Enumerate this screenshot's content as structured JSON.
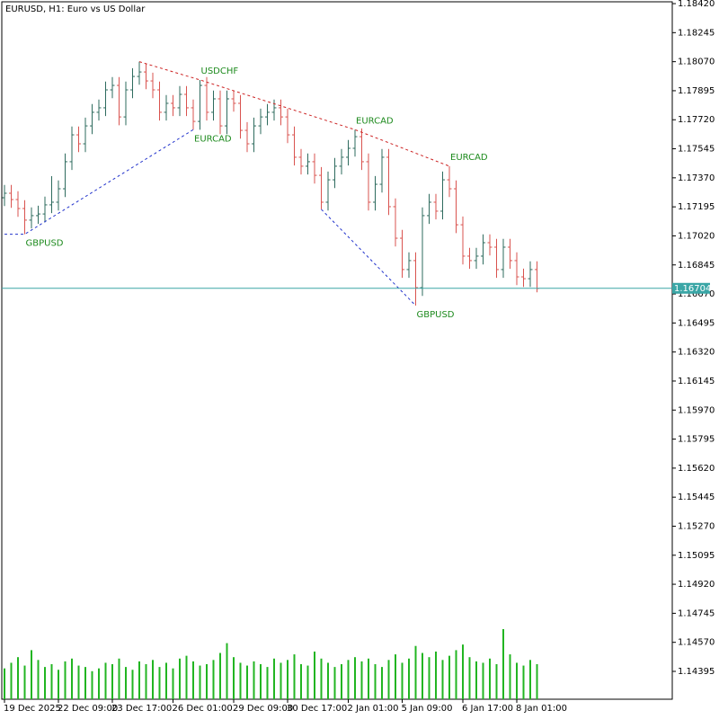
{
  "chart_data": {
    "type": "ohlc",
    "title": "EURUSD, H1:  Euro vs US Dollar",
    "categories": [
      "19 Dec 2025",
      null,
      null,
      null,
      null,
      null,
      null,
      null,
      "22 Dec 09:00",
      null,
      null,
      null,
      null,
      null,
      null,
      null,
      "23 Dec 17:00",
      null,
      null,
      null,
      null,
      null,
      null,
      null,
      null,
      "26 Dec 01:00",
      null,
      null,
      null,
      null,
      null,
      null,
      null,
      null,
      "29 Dec 09:00",
      null,
      null,
      null,
      null,
      null,
      null,
      null,
      "30 Dec 17:00",
      null,
      null,
      null,
      null,
      null,
      null,
      null,
      null,
      "2 Jan 01:00",
      null,
      null,
      null,
      null,
      null,
      null,
      null,
      "5 Jan 09:00",
      null,
      null,
      null,
      null,
      null,
      null,
      null,
      null,
      "6 Jan 17:00",
      null,
      null,
      null,
      null,
      null,
      null,
      null,
      "8 Jan 01:00",
      null,
      null,
      null
    ],
    "open": [
      1.1725,
      1.17277,
      1.17239,
      1.17185,
      1.17115,
      1.17142,
      1.17152,
      1.17207,
      1.17223,
      1.17304,
      1.17467,
      1.17629,
      1.17575,
      1.17683,
      1.17765,
      1.17792,
      1.179,
      1.17927,
      1.17737,
      1.179,
      1.17981,
      1.18008,
      1.17954,
      1.179,
      1.17765,
      1.17819,
      1.17792,
      1.17873,
      1.17792,
      1.1771,
      1.17927,
      1.17765,
      1.17846,
      1.17683,
      1.17846,
      1.17819,
      1.17656,
      1.17575,
      1.17683,
      1.17737,
      1.17765,
      1.17792,
      1.17737,
      1.17629,
      1.17494,
      1.1744,
      1.17467,
      1.17385,
      1.17223,
      1.17358,
      1.1744,
      1.17494,
      1.17548,
      1.17618,
      1.17467,
      1.17223,
      1.17331,
      1.17494,
      1.17196,
      1.17006,
      1.16817,
      1.16871,
      1.16708,
      1.17142,
      1.17223,
      1.17169,
      1.17358,
      1.17304,
      1.17087,
      1.16898,
      1.16871,
      1.16898,
      1.16979,
      1.16952,
      1.16817,
      1.16952,
      1.16871,
      1.16773,
      1.16762,
      1.16817
    ],
    "high": [
      1.17327,
      1.17327,
      1.17289,
      1.17235,
      1.17192,
      1.17202,
      1.17257,
      1.1738,
      1.17354,
      1.17517,
      1.17679,
      1.17679,
      1.17733,
      1.17815,
      1.17842,
      1.1795,
      1.17977,
      1.17977,
      1.1795,
      1.18031,
      1.1807,
      1.18058,
      1.18004,
      1.1795,
      1.17869,
      1.17869,
      1.17923,
      1.17923,
      1.17842,
      1.1796,
      1.17977,
      1.17896,
      1.17896,
      1.17896,
      1.17896,
      1.17869,
      1.17706,
      1.17733,
      1.17787,
      1.17815,
      1.17842,
      1.17842,
      1.17787,
      1.17679,
      1.17544,
      1.17517,
      1.17517,
      1.17435,
      1.17408,
      1.1749,
      1.17544,
      1.17598,
      1.1766,
      1.17668,
      1.17517,
      1.17381,
      1.17544,
      1.17544,
      1.17246,
      1.17056,
      1.16921,
      1.16921,
      1.17192,
      1.17273,
      1.17273,
      1.17408,
      1.1744,
      1.17354,
      1.17137,
      1.16948,
      1.16948,
      1.17029,
      1.17029,
      1.17002,
      1.17002,
      1.17002,
      1.16921,
      1.16823,
      1.16867,
      1.16867
    ],
    "low": [
      1.172,
      1.17189,
      1.17135,
      1.1703,
      1.17065,
      1.17092,
      1.17102,
      1.17157,
      1.17173,
      1.17254,
      1.17417,
      1.17525,
      1.17525,
      1.17633,
      1.17715,
      1.17742,
      1.1785,
      1.17687,
      1.17687,
      1.1785,
      1.17931,
      1.17904,
      1.1785,
      1.17715,
      1.17715,
      1.17742,
      1.17742,
      1.17742,
      1.1766,
      1.1766,
      1.17715,
      1.17715,
      1.17633,
      1.17633,
      1.17769,
      1.17606,
      1.17525,
      1.17525,
      1.17633,
      1.17687,
      1.17715,
      1.17687,
      1.17579,
      1.17444,
      1.1739,
      1.1739,
      1.17335,
      1.1718,
      1.17173,
      1.17308,
      1.1739,
      1.17444,
      1.17498,
      1.17417,
      1.17173,
      1.17173,
      1.17281,
      1.17146,
      1.16956,
      1.16767,
      1.16767,
      1.166,
      1.16658,
      1.17092,
      1.17119,
      1.17119,
      1.17254,
      1.17037,
      1.16848,
      1.16821,
      1.16821,
      1.16848,
      1.16902,
      1.16767,
      1.16767,
      1.16821,
      1.16723,
      1.16712,
      1.16712,
      1.1668
    ],
    "close": [
      1.17277,
      1.17239,
      1.17185,
      1.17115,
      1.17142,
      1.17152,
      1.17207,
      1.17223,
      1.17304,
      1.17467,
      1.17629,
      1.17575,
      1.17683,
      1.17765,
      1.17792,
      1.179,
      1.17927,
      1.17737,
      1.179,
      1.17981,
      1.18008,
      1.17954,
      1.179,
      1.17765,
      1.17819,
      1.17792,
      1.17873,
      1.17792,
      1.1771,
      1.17927,
      1.17765,
      1.17846,
      1.17683,
      1.17846,
      1.17819,
      1.17656,
      1.17575,
      1.17683,
      1.17737,
      1.17765,
      1.17792,
      1.17737,
      1.17629,
      1.17494,
      1.1744,
      1.17467,
      1.17385,
      1.17223,
      1.17358,
      1.1744,
      1.17494,
      1.17548,
      1.17618,
      1.17467,
      1.17223,
      1.17331,
      1.17494,
      1.17196,
      1.17006,
      1.16817,
      1.16871,
      1.16708,
      1.17142,
      1.17223,
      1.17169,
      1.17358,
      1.17304,
      1.17087,
      1.16898,
      1.16871,
      1.16898,
      1.16979,
      1.16952,
      1.16817,
      1.16952,
      1.16871,
      1.16773,
      1.16762,
      1.16817,
      1.16703
    ],
    "volume": [
      2200,
      2600,
      3000,
      2400,
      3500,
      2800,
      2300,
      2500,
      2100,
      2700,
      2900,
      2400,
      2300,
      2000,
      2200,
      2600,
      2500,
      2900,
      2300,
      2100,
      2700,
      2500,
      2800,
      2300,
      2600,
      2200,
      2900,
      3100,
      2700,
      2400,
      2500,
      2800,
      3300,
      4000,
      3000,
      2600,
      2400,
      2700,
      2500,
      2300,
      2900,
      2600,
      2800,
      3200,
      2500,
      2400,
      3400,
      2900,
      2600,
      2300,
      2500,
      2800,
      3000,
      2700,
      2900,
      2500,
      2300,
      2800,
      3200,
      2600,
      2900,
      3800,
      3300,
      3000,
      3400,
      2800,
      3100,
      3500,
      3900,
      3000,
      2700,
      2600,
      2900,
      2500,
      5000,
      3200,
      2600,
      2400,
      2800,
      2500
    ],
    "ylim": [
      1.14227,
      1.18431
    ],
    "yticks": [
      {
        "value": 1.1842,
        "label": "1.18420"
      },
      {
        "value": 1.18245,
        "label": "1.18245"
      },
      {
        "value": 1.1807,
        "label": "1.18070"
      },
      {
        "value": 1.17895,
        "label": "1.17895"
      },
      {
        "value": 1.1772,
        "label": "1.17720"
      },
      {
        "value": 1.17545,
        "label": "1.17545"
      },
      {
        "value": 1.1737,
        "label": "1.17370"
      },
      {
        "value": 1.17195,
        "label": "1.17195"
      },
      {
        "value": 1.1702,
        "label": "1.17020"
      },
      {
        "value": 1.16845,
        "label": "1.16845"
      },
      {
        "value": 1.1667,
        "label": "1.16670"
      },
      {
        "value": 1.16495,
        "label": "1.16495"
      },
      {
        "value": 1.1632,
        "label": "1.16320"
      },
      {
        "value": 1.16145,
        "label": "1.16145"
      },
      {
        "value": 1.1597,
        "label": "1.15970"
      },
      {
        "value": 1.15795,
        "label": "1.15795"
      },
      {
        "value": 1.1562,
        "label": "1.15620"
      },
      {
        "value": 1.15445,
        "label": "1.15445"
      },
      {
        "value": 1.1527,
        "label": "1.15270"
      },
      {
        "value": 1.15095,
        "label": "1.15095"
      },
      {
        "value": 1.1492,
        "label": "1.14920"
      },
      {
        "value": 1.14745,
        "label": "1.14745"
      },
      {
        "value": 1.1457,
        "label": "1.14570"
      },
      {
        "value": 1.14395,
        "label": "1.14395"
      }
    ],
    "up_color": "#2e6b5e",
    "down_color": "#d9534f",
    "volume_color": "#22b522",
    "last_price": 1.16704,
    "last_price_color": "#3aa6a6",
    "annotation_color": "#1d8a1d",
    "annotations": [
      {
        "text": "GBPUSD",
        "bar": 3,
        "price": 1.1703,
        "position": "below"
      },
      {
        "text": "USDCHF",
        "bar": 29,
        "price": 1.1796,
        "position": "above"
      },
      {
        "text": "EURCAD",
        "bar": 28,
        "price": 1.1766,
        "position": "below"
      },
      {
        "text": "EURCAD",
        "bar": 52,
        "price": 1.1766,
        "position": "above"
      },
      {
        "text": "EURCAD",
        "bar": 66,
        "price": 1.1744,
        "position": "above"
      },
      {
        "text": "GBPUSD",
        "bar": 61,
        "price": 1.166,
        "position": "below"
      }
    ],
    "drawings": [
      {
        "color": "#cc2222",
        "points": [
          [
            20,
            1.1807
          ],
          [
            29,
            1.1796
          ],
          [
            52,
            1.1766
          ],
          [
            66,
            1.1744
          ]
        ]
      },
      {
        "color": "#2233cc",
        "points": [
          [
            0,
            1.1703
          ],
          [
            3,
            1.1703
          ],
          [
            28,
            1.1766
          ]
        ]
      },
      {
        "color": "#2233cc",
        "points": [
          [
            47,
            1.1718
          ],
          [
            61,
            1.166
          ]
        ]
      }
    ]
  }
}
